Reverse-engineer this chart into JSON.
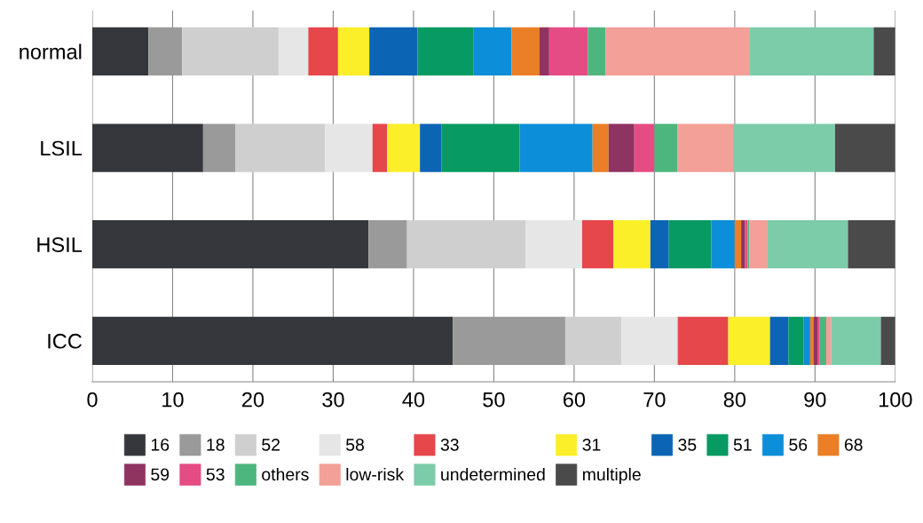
{
  "chart_data": {
    "type": "bar",
    "orientation": "horizontal",
    "stacked": true,
    "categories": [
      "normal",
      "LSIL",
      "HSIL",
      "ICC"
    ],
    "xlim": [
      0,
      100
    ],
    "xticks": [
      0,
      10,
      20,
      30,
      40,
      50,
      60,
      70,
      80,
      90,
      100
    ],
    "grid": "x",
    "legend": "bottom",
    "series": [
      {
        "name": "16",
        "color": "#35373c",
        "values": [
          7.0,
          13.8,
          34.4,
          44.9
        ]
      },
      {
        "name": "18",
        "color": "#9a9a9a",
        "values": [
          4.2,
          4.0,
          4.8,
          14.0
        ]
      },
      {
        "name": "52",
        "color": "#cfcfcf",
        "values": [
          12.0,
          11.2,
          14.8,
          7.0
        ]
      },
      {
        "name": "58",
        "color": "#e6e6e6",
        "values": [
          3.7,
          5.9,
          7.0,
          7.0
        ]
      },
      {
        "name": "33",
        "color": "#e5474b",
        "values": [
          3.7,
          1.8,
          3.9,
          6.3
        ]
      },
      {
        "name": "31",
        "color": "#fbef2a",
        "values": [
          3.9,
          4.1,
          4.6,
          5.2
        ]
      },
      {
        "name": "35",
        "color": "#0c64b4",
        "values": [
          6.0,
          2.7,
          2.3,
          2.3
        ]
      },
      {
        "name": "51",
        "color": "#079a62",
        "values": [
          7.0,
          9.7,
          5.3,
          1.9
        ]
      },
      {
        "name": "56",
        "color": "#0d8ed8",
        "values": [
          4.7,
          9.1,
          2.9,
          0.8
        ]
      },
      {
        "name": "68",
        "color": "#ea7f27",
        "values": [
          3.5,
          2.0,
          0.8,
          0.4
        ]
      },
      {
        "name": "59",
        "color": "#8f3361",
        "values": [
          1.2,
          3.2,
          0.5,
          0.5
        ]
      },
      {
        "name": "53",
        "color": "#e64c84",
        "values": [
          4.8,
          2.5,
          0.3,
          0.3
        ]
      },
      {
        "name": "others",
        "color": "#4db67f",
        "values": [
          2.2,
          2.9,
          0.2,
          0.8
        ]
      },
      {
        "name": "low-risk",
        "color": "#f2a098",
        "values": [
          18.0,
          6.9,
          2.3,
          0.6
        ]
      },
      {
        "name": "undetermined",
        "color": "#7cccaa",
        "values": [
          15.4,
          12.7,
          10.0,
          6.2
        ]
      },
      {
        "name": "multiple",
        "color": "#4a4a4a",
        "values": [
          2.7,
          7.5,
          5.9,
          1.8
        ]
      }
    ]
  }
}
